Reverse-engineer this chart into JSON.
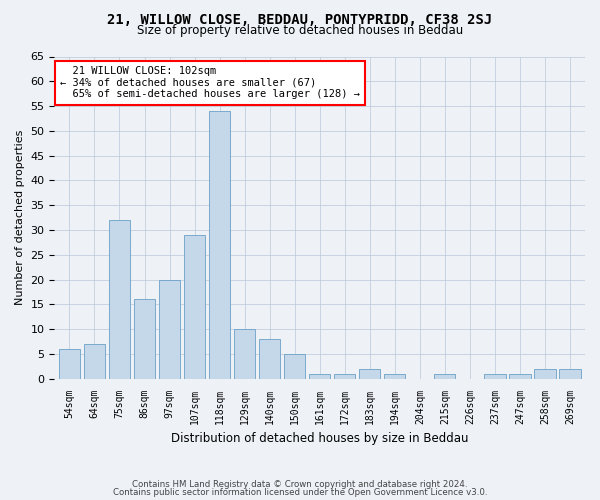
{
  "title1": "21, WILLOW CLOSE, BEDDAU, PONTYPRIDD, CF38 2SJ",
  "title2": "Size of property relative to detached houses in Beddau",
  "xlabel": "Distribution of detached houses by size in Beddau",
  "ylabel": "Number of detached properties",
  "categories": [
    "54sqm",
    "64sqm",
    "75sqm",
    "86sqm",
    "97sqm",
    "107sqm",
    "118sqm",
    "129sqm",
    "140sqm",
    "150sqm",
    "161sqm",
    "172sqm",
    "183sqm",
    "194sqm",
    "204sqm",
    "215sqm",
    "226sqm",
    "237sqm",
    "247sqm",
    "258sqm",
    "269sqm"
  ],
  "values": [
    6,
    7,
    32,
    16,
    20,
    29,
    54,
    10,
    8,
    5,
    1,
    1,
    2,
    1,
    0,
    1,
    0,
    1,
    1,
    2,
    2
  ],
  "bar_color": "#c5d8ea",
  "bar_edge_color": "#6aa0c8",
  "annotation_text": "  21 WILLOW CLOSE: 102sqm\n← 34% of detached houses are smaller (67)\n  65% of semi-detached houses are larger (128) →",
  "annotation_box_color": "white",
  "annotation_box_edgecolor": "red",
  "footer1": "Contains HM Land Registry data © Crown copyright and database right 2024.",
  "footer2": "Contains public sector information licensed under the Open Government Licence v3.0.",
  "background_color": "#eef2f7",
  "ylim": [
    0,
    65
  ],
  "yticks": [
    0,
    5,
    10,
    15,
    20,
    25,
    30,
    35,
    40,
    45,
    50,
    55,
    60,
    65
  ]
}
